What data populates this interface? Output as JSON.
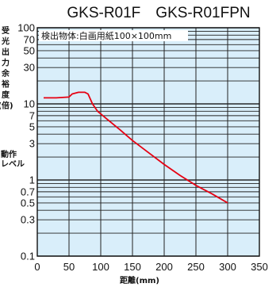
{
  "chart_data": {
    "type": "line",
    "title": "GKS-R01F　GKS-R01FPN",
    "annotation": "検出物体:白画用紙100×100mm",
    "ylabel": "受光出力余裕度(倍)",
    "ylabel_chars": [
      "受",
      "光",
      "出",
      "力",
      "余",
      "裕",
      "度",
      "(倍)"
    ],
    "ylabel2": [
      "動作",
      "レベル"
    ],
    "xlabel": "距離(mm)",
    "xlim": [
      0,
      350
    ],
    "ylim": [
      0.1,
      100
    ],
    "yscale": "log",
    "grid": true,
    "xticks": [
      0,
      50,
      100,
      150,
      200,
      250,
      300,
      350
    ],
    "yticks": [
      100,
      70,
      50,
      30,
      10,
      7,
      5,
      3,
      1,
      0.7,
      0.5,
      0.3,
      0.1
    ],
    "ytick_labels": [
      "100",
      "70",
      "50",
      "30",
      "10",
      "7",
      "5",
      "3",
      "1",
      "0.7",
      "0.5",
      "0.3",
      "0.1"
    ],
    "series": [
      {
        "color": "#e60012",
        "x": [
          10,
          30,
          50,
          55,
          65,
          75,
          80,
          87,
          95,
          110,
          130,
          150,
          175,
          200,
          225,
          250,
          275,
          300
        ],
        "y": [
          12,
          12,
          12.3,
          13.5,
          14.2,
          14.2,
          13.5,
          10,
          8,
          6.3,
          4.6,
          3.3,
          2.3,
          1.6,
          1.15,
          0.85,
          0.66,
          0.5
        ]
      }
    ],
    "colors": {
      "plot_bg": "#d9eefa",
      "grid": "#222222",
      "line": "#e60012"
    }
  }
}
